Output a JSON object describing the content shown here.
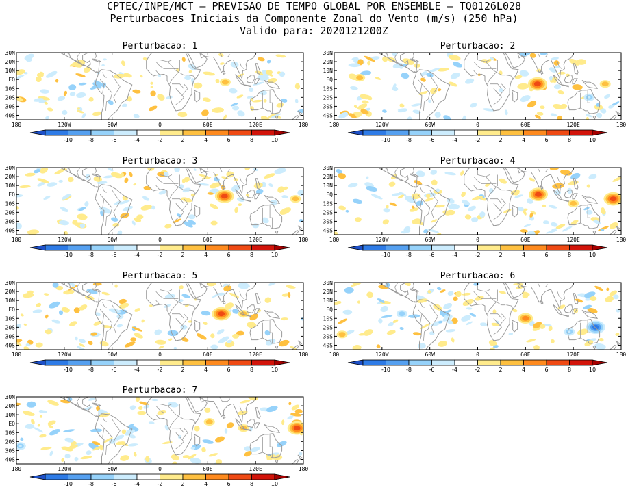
{
  "header": {
    "line1": "CPTEC/INPE/MCT – PREVISAO DE TEMPO GLOBAL POR ENSEMBLE – TQ0126L028",
    "line2": "Perturbacoes Iniciais da Componente Zonal do Vento (m/s) (250 hPa)",
    "line3": "Valido para: 2020121200Z"
  },
  "chart_data": {
    "type": "heatmap",
    "variable": "Perturbacoes Iniciais da Componente Zonal do Vento",
    "units": "m/s",
    "level": "250 hPa",
    "valid_time": "2020121200Z",
    "panels": [
      {
        "title": "Perturbacao: 1",
        "extremes": [
          {
            "lon": 82,
            "lat": -3,
            "value": 5
          },
          {
            "lon": 137,
            "lat": 8,
            "value": 3
          },
          {
            "lon": -150,
            "lat": 5,
            "value": 3
          },
          {
            "lon": 95,
            "lat": -32,
            "value": -3
          },
          {
            "lon": 35,
            "lat": 2,
            "value": -3
          },
          {
            "lon": 130,
            "lat": -15,
            "value": -3
          }
        ]
      },
      {
        "title": "Perturbacao: 2",
        "extremes": [
          {
            "lon": 75,
            "lat": -5,
            "value": 8
          },
          {
            "lon": 160,
            "lat": -5,
            "value": 4
          },
          {
            "lon": -148,
            "lat": 2,
            "value": 4
          },
          {
            "lon": 140,
            "lat": -20,
            "value": -4
          },
          {
            "lon": 100,
            "lat": -8,
            "value": -3
          },
          {
            "lon": 108,
            "lat": -30,
            "value": 3
          }
        ]
      },
      {
        "title": "Perturbacao: 3",
        "extremes": [
          {
            "lon": 81,
            "lat": -2,
            "value": 8
          },
          {
            "lon": 170,
            "lat": -5,
            "value": 4
          },
          {
            "lon": 40,
            "lat": -25,
            "value": -3
          },
          {
            "lon": -25,
            "lat": -25,
            "value": 3
          },
          {
            "lon": 120,
            "lat": -35,
            "value": -3
          },
          {
            "lon": 68,
            "lat": -32,
            "value": 3
          }
        ]
      },
      {
        "title": "Perturbacao: 4",
        "extremes": [
          {
            "lon": 76,
            "lat": 0,
            "value": 9
          },
          {
            "lon": 170,
            "lat": -5,
            "value": 8
          },
          {
            "lon": 120,
            "lat": -10,
            "value": 4
          },
          {
            "lon": 140,
            "lat": -20,
            "value": -3
          },
          {
            "lon": 100,
            "lat": 2,
            "value": -3
          },
          {
            "lon": -150,
            "lat": -28,
            "value": 3
          }
        ]
      },
      {
        "title": "Perturbacao: 5",
        "extremes": [
          {
            "lon": 77,
            "lat": -5,
            "value": 8
          },
          {
            "lon": 105,
            "lat": -5,
            "value": 4
          },
          {
            "lon": -50,
            "lat": -8,
            "value": -3
          },
          {
            "lon": 95,
            "lat": -30,
            "value": 3
          },
          {
            "lon": -140,
            "lat": -25,
            "value": 3
          },
          {
            "lon": 30,
            "lat": -20,
            "value": -3
          }
        ]
      },
      {
        "title": "Perturbacao: 6",
        "extremes": [
          {
            "lon": 148,
            "lat": -20,
            "value": -9
          },
          {
            "lon": 60,
            "lat": -10,
            "value": 6
          },
          {
            "lon": -95,
            "lat": -5,
            "value": -5
          },
          {
            "lon": -170,
            "lat": -28,
            "value": 4
          },
          {
            "lon": 115,
            "lat": -25,
            "value": -4
          },
          {
            "lon": 145,
            "lat": 12,
            "value": 3
          }
        ]
      },
      {
        "title": "Perturbacao: 7",
        "extremes": [
          {
            "lon": 172,
            "lat": -5,
            "value": 8
          },
          {
            "lon": 105,
            "lat": -5,
            "value": 5
          },
          {
            "lon": 62,
            "lat": 2,
            "value": 4
          },
          {
            "lon": -60,
            "lat": -20,
            "value": -3
          },
          {
            "lon": -175,
            "lat": -25,
            "value": -4
          },
          {
            "lon": 110,
            "lat": -28,
            "value": -3
          }
        ]
      }
    ],
    "x_ticks": [
      "180",
      "120W",
      "60W",
      "0",
      "60E",
      "120E",
      "180"
    ],
    "x_tick_values": [
      -180,
      -120,
      -60,
      0,
      60,
      120,
      180
    ],
    "y_ticks": [
      "30N",
      "20N",
      "10N",
      "EQ",
      "10S",
      "20S",
      "30S",
      "40S"
    ],
    "y_tick_values": [
      30,
      20,
      10,
      0,
      -10,
      -20,
      -30,
      -40
    ],
    "xlim": [
      -180,
      180
    ],
    "ylim": [
      -45,
      30
    ],
    "colorbar": {
      "labels": [
        "-10",
        "-8",
        "-6",
        "-4",
        "-2",
        "2",
        "4",
        "6",
        "8",
        "10"
      ],
      "levels": [
        -10,
        -8,
        -6,
        -4,
        -2,
        2,
        4,
        6,
        8,
        10
      ],
      "colors": [
        "#1e50c8",
        "#2e7be6",
        "#55a0f0",
        "#96d2fa",
        "#ccecfd",
        "#ffffff",
        "#ffeb8c",
        "#fec040",
        "#fe8a1e",
        "#ef4a14",
        "#d2140a",
        "#a50000"
      ]
    }
  }
}
